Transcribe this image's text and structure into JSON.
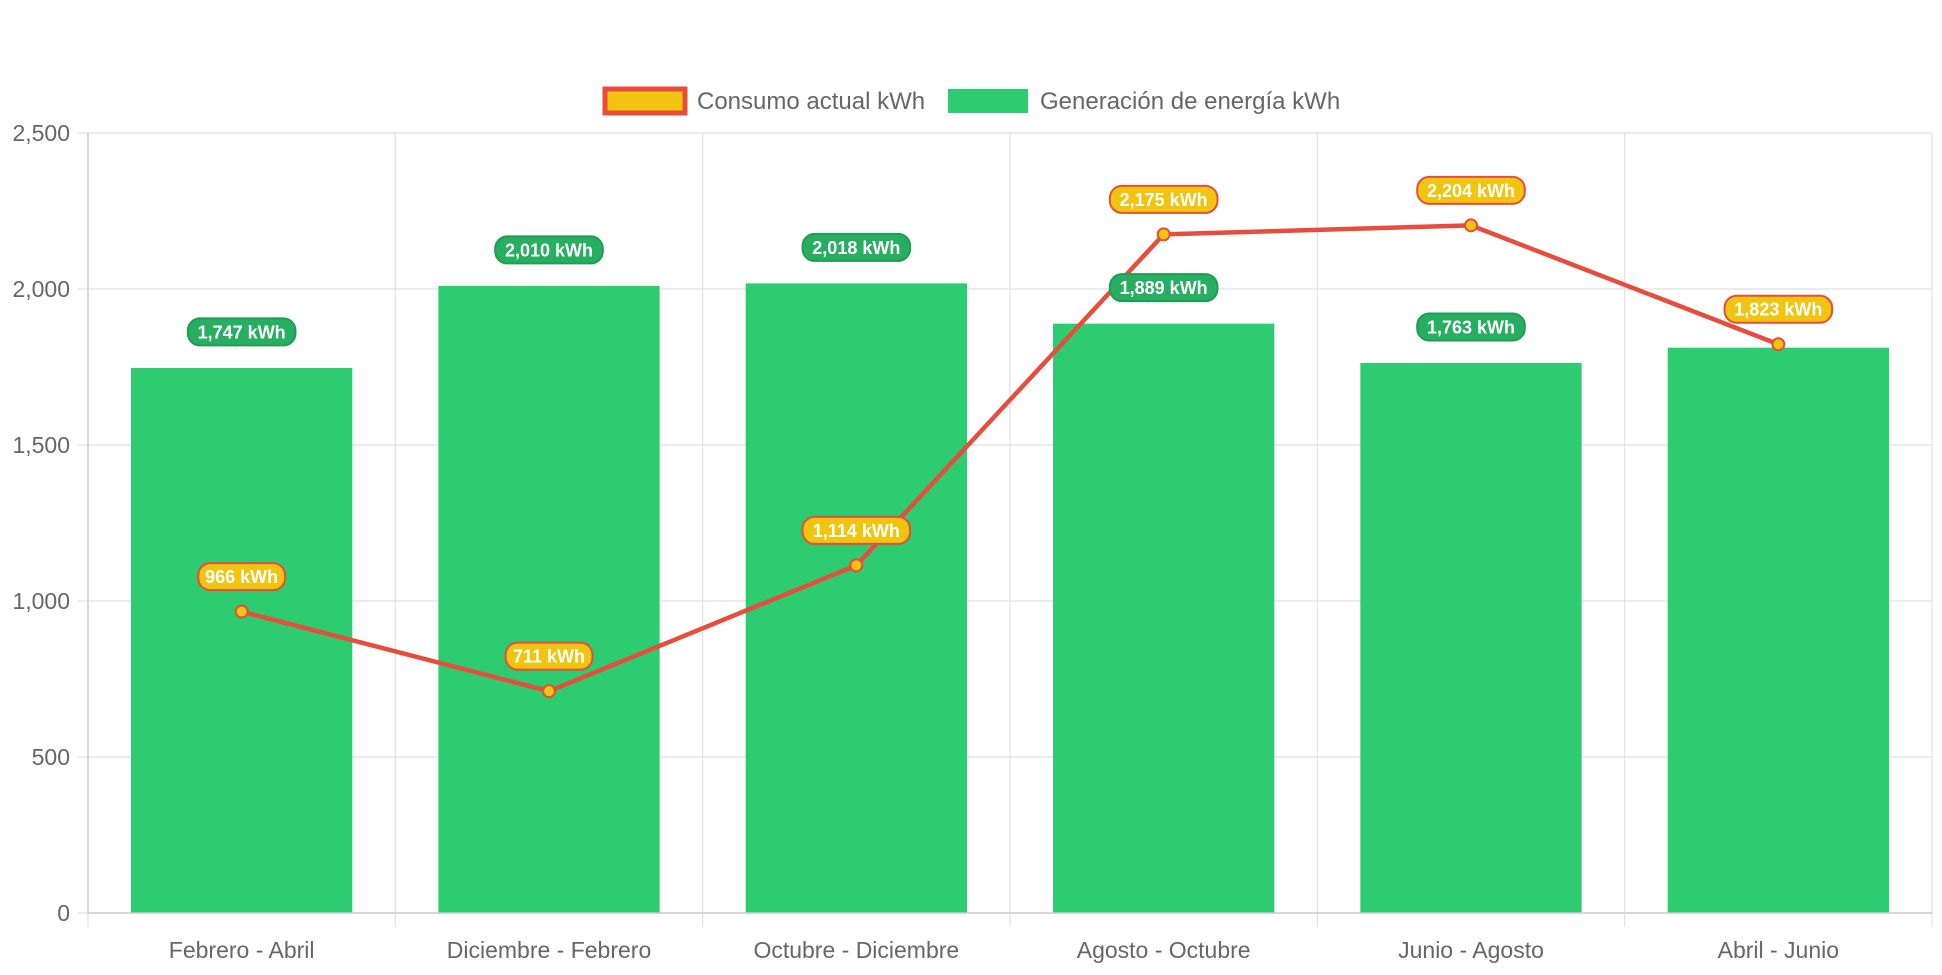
{
  "chart_data": {
    "type": "bar",
    "categories": [
      "Febrero - Abril",
      "Diciembre - Febrero",
      "Octubre - Diciembre",
      "Agosto - Octubre",
      "Junio - Agosto",
      "Abril - Junio"
    ],
    "series": [
      {
        "name": "Consumo actual kWh",
        "type": "line",
        "values": [
          966,
          711,
          1114,
          2175,
          2204,
          1823
        ],
        "labels": [
          "966 kWh",
          "711 kWh",
          "1,114 kWh",
          "2,175 kWh",
          "2,204 kWh",
          "1,823 kWh"
        ],
        "color": "#e74c3c",
        "fill_color": "#f1c40f"
      },
      {
        "name": "Generación de energía kWh",
        "type": "bar",
        "values": [
          1747,
          2010,
          2018,
          1889,
          1763,
          1812
        ],
        "labels": [
          "1,747 kWh",
          "2,010 kWh",
          "2,018 kWh",
          "1,889 kWh",
          "1,763 kWh",
          ""
        ],
        "color": "#2ecc71",
        "label_color": "#27ae60"
      }
    ],
    "yticks": [
      "0",
      "500",
      "1,000",
      "1,500",
      "2,000",
      "2,500"
    ],
    "ylim": [
      0,
      2500
    ],
    "grid": true,
    "legend": "top-center"
  }
}
